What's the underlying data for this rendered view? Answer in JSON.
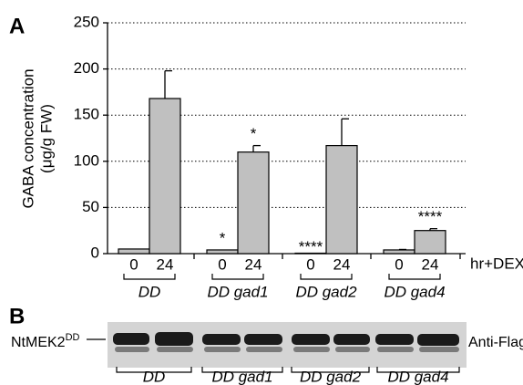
{
  "chart_data": {
    "type": "bar",
    "panel_label": "A",
    "y_label": [
      "GABA concentration",
      "(μg/g FW)"
    ],
    "x_unit_label": "hr+DEX",
    "categories": [
      "0",
      "24",
      "0",
      "24",
      "0",
      "24",
      "0",
      "24"
    ],
    "groups": [
      "DD",
      "DD gad1",
      "DD gad2",
      "DD gad4"
    ],
    "values": [
      5,
      168,
      4,
      110,
      0.5,
      117,
      4,
      25
    ],
    "errors": [
      null,
      30,
      null,
      7,
      null,
      29,
      0.5,
      2
    ],
    "significance": [
      null,
      null,
      "*",
      "*",
      "****",
      null,
      null,
      "****"
    ],
    "color": "#c0c0c0",
    "ylim": [
      0,
      250
    ],
    "yticks": [
      0,
      50,
      100,
      150,
      200,
      250
    ],
    "grid": true
  },
  "blot": {
    "panel_label": "B",
    "protein": "NtMEK2",
    "protein_superscript": "DD",
    "antibody": "Anti-Flag",
    "lanes": [
      "DD",
      "DD gad1",
      "DD gad2",
      "DD gad4"
    ]
  }
}
